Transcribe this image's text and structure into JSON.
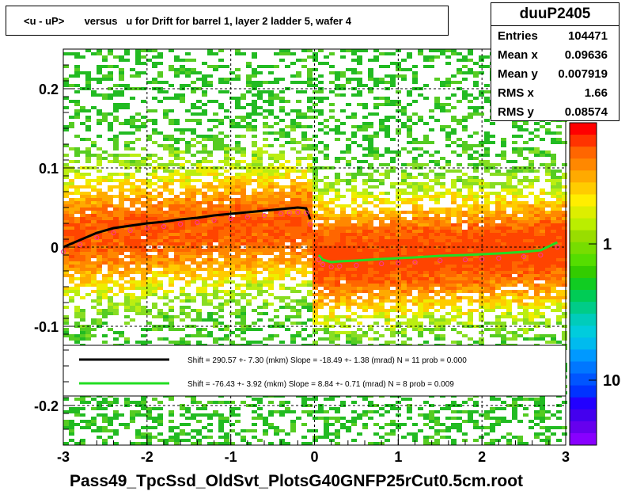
{
  "title": "<u - uP>       versus   u for Drift for barrel 1, layer 2 ladder 5, wafer 4",
  "stats": {
    "name": "duuP2405",
    "rows": [
      {
        "key": "Entries",
        "value": "104471"
      },
      {
        "key": "Mean x",
        "value": "0.09636"
      },
      {
        "key": "Mean y",
        "value": "0.007919"
      },
      {
        "key": "RMS x",
        "value": "1.66"
      },
      {
        "key": "RMS y",
        "value": "0.08574"
      }
    ]
  },
  "x_axis_title": "Pass49_TpcSsd_OldSvt_PlotsG40GNFP25rCut0.5cm.root",
  "chart_data": {
    "type": "heatmap",
    "xlim": [
      -3,
      3
    ],
    "ylim": [
      -0.25,
      0.25
    ],
    "x_ticks": [
      "-3",
      "-2",
      "-1",
      "0",
      "1",
      "2",
      "3"
    ],
    "y_ticks": [
      "-0.2",
      "-0.1",
      "0",
      "0.1",
      "0.2"
    ],
    "y_tick_values": [
      -0.2,
      -0.1,
      0,
      0.1,
      0.2
    ],
    "colorbar_ticks": [
      "1",
      "10"
    ],
    "colorbar_log": true,
    "grid": true,
    "legend": {
      "placement": "bottom",
      "entries": [
        {
          "color": "#000000",
          "text": "Shift =   290.57 +- 7.30 (mkm) Slope =   -18.49 +- 1.38 (mrad)  N = 11 prob = 0.000"
        },
        {
          "color": "#22dd22",
          "text": "Shift =   -76.43 +- 3.92 (mkm) Slope =     8.84 +- 0.71 (mrad)  N = 8 prob = 0.009"
        }
      ]
    },
    "series": [
      {
        "color": "#000000",
        "x": [
          -3.0,
          -2.8,
          -2.6,
          -2.4,
          -2.2,
          -2.0,
          -1.8,
          -1.6,
          -1.4,
          -1.2,
          -1.0,
          -0.8,
          -0.6,
          -0.4,
          -0.3,
          -0.2,
          -0.1,
          -0.05
        ],
        "y": [
          0.0,
          0.009,
          0.018,
          0.024,
          0.027,
          0.03,
          0.032,
          0.035,
          0.037,
          0.04,
          0.042,
          0.044,
          0.046,
          0.048,
          0.049,
          0.05,
          0.049,
          0.035
        ]
      },
      {
        "color": "#22dd22",
        "x": [
          0.05,
          0.1,
          0.2,
          0.3,
          0.5,
          0.8,
          1.0,
          1.2,
          1.5,
          1.8,
          2.0,
          2.2,
          2.5,
          2.7,
          2.9
        ],
        "y": [
          -0.01,
          -0.016,
          -0.019,
          -0.018,
          -0.017,
          -0.015,
          -0.014,
          -0.013,
          -0.011,
          -0.01,
          -0.009,
          -0.008,
          -0.006,
          -0.004,
          0.006
        ]
      }
    ]
  }
}
